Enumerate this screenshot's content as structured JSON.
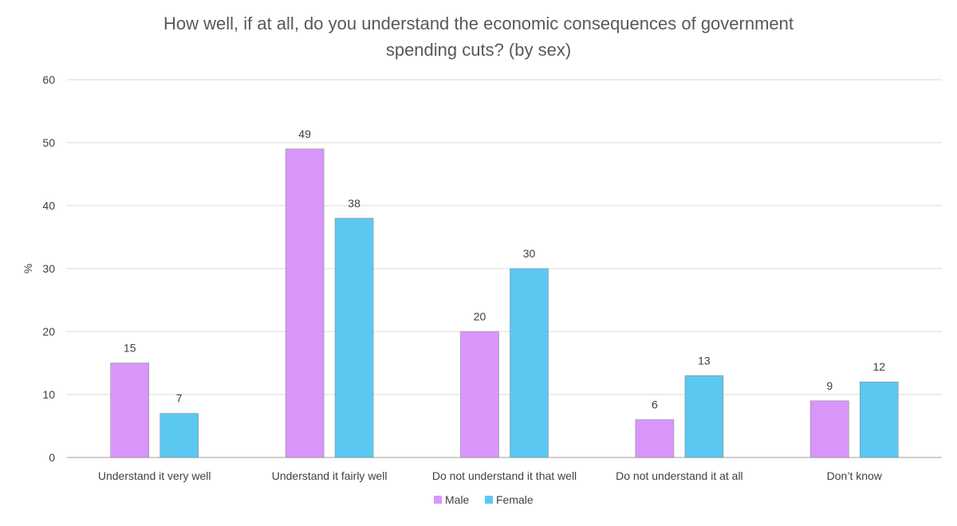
{
  "chart_data": {
    "type": "bar",
    "title_lines": [
      "How well, if at all, do you understand the economic consequences of government",
      "spending cuts? (by sex)"
    ],
    "xlabel": "",
    "ylabel": "%",
    "ylim": [
      0,
      60
    ],
    "yticks": [
      0,
      10,
      20,
      30,
      40,
      50,
      60
    ],
    "grid": true,
    "legend_position": "bottom",
    "categories": [
      "Understand it very well",
      "Understand it fairly well",
      "Do not understand it that well",
      "Do not understand it at all",
      "Don’t know"
    ],
    "series": [
      {
        "name": "Male",
        "color": "#d896fb",
        "values": [
          15,
          49,
          20,
          6,
          9
        ]
      },
      {
        "name": "Female",
        "color": "#5bc8f2",
        "values": [
          7,
          38,
          30,
          13,
          12
        ]
      }
    ]
  }
}
